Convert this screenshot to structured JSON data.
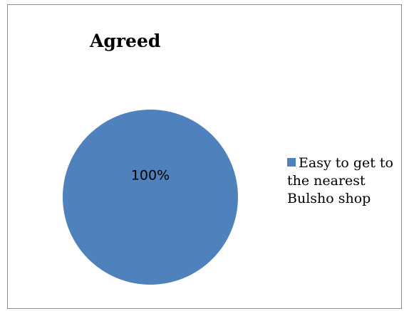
{
  "chart_data": {
    "type": "pie",
    "title": "Agreed",
    "categories": [
      "Easy to get to the nearest Bulsho shop"
    ],
    "legend_lines": [
      "Easy to get to",
      "the nearest",
      "Bulsho shop"
    ],
    "values": [
      100
    ],
    "data_labels": [
      "100%"
    ],
    "colors": [
      "#4f81bd"
    ],
    "legend_position": "right"
  }
}
